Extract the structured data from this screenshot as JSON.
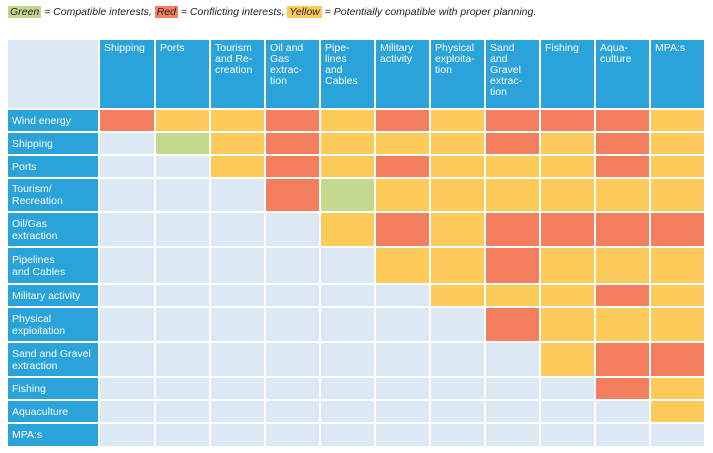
{
  "legend": {
    "parts": [
      {
        "swatch": "Green",
        "text": " = Compatible interests, ",
        "color": "#c4d98f"
      },
      {
        "swatch": "Red",
        "text": " = Conflicting interests, ",
        "color": "#f37f5f"
      },
      {
        "swatch": "Yellow",
        "text": " = Potentially compatible with proper planning.",
        "color": "#fdcb5a"
      }
    ]
  },
  "colors": {
    "header": "#2aa3da",
    "empty": "#dde8f5",
    "G": "#c4d98f",
    "R": "#f37f5f",
    "Y": "#fdcb5a"
  },
  "columns": [
    "Shipping",
    "Ports",
    "Tourism\nand Re-\ncreation",
    "Oil and\nGas\nextrac-\ntion",
    "Pipe-\nlines\nand\nCables",
    "Military\nactivity",
    "Physical\nexploita-\ntion",
    "Sand\nand\nGravel\nextrac-\ntion",
    "Fishing",
    "Aqua-\nculture",
    "MPA:s"
  ],
  "rows": [
    {
      "label": "Wind energy",
      "cells": [
        "R",
        "Y",
        "Y",
        "R",
        "Y",
        "R",
        "Y",
        "R",
        "R",
        "R",
        "Y"
      ]
    },
    {
      "label": "Shipping",
      "cells": [
        "",
        "G",
        "Y",
        "R",
        "Y",
        "Y",
        "Y",
        "R",
        "Y",
        "R",
        "Y"
      ]
    },
    {
      "label": "Ports",
      "cells": [
        "",
        "",
        "Y",
        "R",
        "Y",
        "R",
        "Y",
        "Y",
        "Y",
        "R",
        "Y"
      ]
    },
    {
      "label": "Tourism/\nRecreation",
      "cells": [
        "",
        "",
        "",
        "R",
        "G",
        "Y",
        "Y",
        "Y",
        "Y",
        "Y",
        "Y"
      ]
    },
    {
      "label": "Oil/Gas\nextraction",
      "cells": [
        "",
        "",
        "",
        "",
        "Y",
        "R",
        "Y",
        "R",
        "R",
        "R",
        "R"
      ]
    },
    {
      "label": "Pipelines\nand Cables",
      "cells": [
        "",
        "",
        "",
        "",
        "",
        "Y",
        "Y",
        "R",
        "Y",
        "Y",
        "Y"
      ]
    },
    {
      "label": "Military activity",
      "cells": [
        "",
        "",
        "",
        "",
        "",
        "",
        "Y",
        "Y",
        "Y",
        "R",
        "Y"
      ]
    },
    {
      "label": "Physical\nexploitation",
      "cells": [
        "",
        "",
        "",
        "",
        "",
        "",
        "",
        "R",
        "Y",
        "Y",
        "Y"
      ]
    },
    {
      "label": "Sand and Gravel\nextraction",
      "cells": [
        "",
        "",
        "",
        "",
        "",
        "",
        "",
        "",
        "Y",
        "R",
        "R"
      ]
    },
    {
      "label": "Fishing",
      "cells": [
        "",
        "",
        "",
        "",
        "",
        "",
        "",
        "",
        "",
        "R",
        "Y"
      ]
    },
    {
      "label": "Aquaculture",
      "cells": [
        "",
        "",
        "",
        "",
        "",
        "",
        "",
        "",
        "",
        "",
        "Y"
      ]
    },
    {
      "label": "MPA:s",
      "cells": [
        "",
        "",
        "",
        "",
        "",
        "",
        "",
        "",
        "",
        "",
        ""
      ]
    }
  ]
}
